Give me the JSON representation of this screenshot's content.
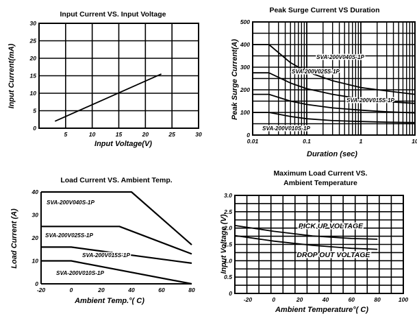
{
  "chart_data": [
    {
      "id": "c1",
      "type": "line",
      "title": "Input Current VS. Input Voltage",
      "xlabel": "Input  Voltage(V)",
      "ylabel": "Input Current(mA)",
      "xlim": [
        0,
        30
      ],
      "ylim": [
        0,
        30
      ],
      "x_ticks": [
        5,
        10,
        15,
        20,
        25,
        30
      ],
      "y_ticks": [
        0,
        5,
        10,
        15,
        20,
        25,
        30
      ],
      "grid": true,
      "series": [
        {
          "x": [
            3,
            23
          ],
          "y": [
            2,
            15.5
          ]
        }
      ]
    },
    {
      "id": "c2",
      "type": "line",
      "title": "Peak Surge Current VS Duration",
      "xlabel": "Duration (sec)",
      "ylabel": "Peak Surge Current(A)",
      "xscale": "log",
      "xlim": [
        0.01,
        10
      ],
      "ylim": [
        0,
        500
      ],
      "x_ticks": [
        0.01,
        0.1,
        1,
        10
      ],
      "x_tick_labels": [
        "0.01",
        "0.1",
        "1",
        "10"
      ],
      "y_ticks": [
        0,
        100,
        200,
        300,
        400,
        500
      ],
      "grid": true,
      "series": [
        {
          "name": "SVA-200V040S-1P",
          "x": [
            0.01,
            0.02,
            0.05,
            0.1,
            0.3,
            1,
            3,
            10
          ],
          "y": [
            400,
            400,
            320,
            280,
            240,
            210,
            195,
            180
          ]
        },
        {
          "name": "SVA-200V025S-1P",
          "x": [
            0.01,
            0.02,
            0.05,
            0.1,
            0.3,
            1,
            3,
            10
          ],
          "y": [
            275,
            275,
            230,
            205,
            180,
            160,
            148,
            140
          ]
        },
        {
          "name": "SVA-200V015S-1P",
          "x": [
            0.01,
            0.02,
            0.05,
            0.1,
            0.3,
            1,
            3,
            10
          ],
          "y": [
            180,
            180,
            150,
            135,
            120,
            110,
            103,
            98
          ]
        },
        {
          "name": "SVA-200V010S-1P",
          "x": [
            0.01,
            0.02,
            0.05,
            0.1,
            0.3,
            1,
            3,
            10
          ],
          "y": [
            100,
            100,
            82,
            72,
            64,
            60,
            57,
            55
          ]
        }
      ]
    },
    {
      "id": "c3",
      "type": "line",
      "title": "Load Current VS.  Ambient Temp.",
      "xlabel": "Ambient Temp.°( C)",
      "ylabel": "Load Current (A)",
      "xlim": [
        -20,
        80
      ],
      "ylim": [
        0,
        40
      ],
      "x_ticks": [
        -20,
        0,
        20,
        40,
        60,
        80
      ],
      "y_ticks": [
        0,
        10,
        20,
        30,
        40
      ],
      "grid": false,
      "series": [
        {
          "name": "SVA-200V040S-1P",
          "x": [
            -20,
            40,
            80
          ],
          "y": [
            40,
            40,
            17
          ]
        },
        {
          "name": "SVA-200V025S-1P",
          "x": [
            -20,
            32,
            80
          ],
          "y": [
            25,
            25,
            13
          ]
        },
        {
          "name": "SVA-200V015S-1P",
          "x": [
            -20,
            0,
            80
          ],
          "y": [
            16,
            16,
            9
          ]
        },
        {
          "name": "SVA-200V010S-1P",
          "x": [
            -20,
            0,
            80
          ],
          "y": [
            10,
            10,
            0
          ]
        }
      ]
    },
    {
      "id": "c4",
      "type": "line",
      "title": "Maximum Load Current VS.\nAmbient  Temperature",
      "xlabel": "Ambient Temperature°( C)",
      "ylabel": "Input Voltage (V)",
      "xlim": [
        -30,
        100
      ],
      "ylim": [
        0,
        3.0
      ],
      "x_ticks": [
        -20,
        0,
        20,
        40,
        60,
        80,
        100
      ],
      "y_ticks": [
        0,
        0.5,
        1.0,
        1.5,
        2.0,
        2.5,
        3.0
      ],
      "y_tick_labels": [
        "0",
        "0.5",
        "1.0",
        "1.5",
        "2.0",
        "2.5",
        "3.0"
      ],
      "grid": true,
      "series": [
        {
          "name": "PICK UP VOLTAGE",
          "x": [
            -30,
            0,
            30,
            60,
            80
          ],
          "y": [
            2.08,
            1.9,
            1.76,
            1.68,
            1.66
          ]
        },
        {
          "name": "DROP OUT VOLTAGE",
          "x": [
            -30,
            0,
            30,
            60,
            80
          ],
          "y": [
            1.77,
            1.6,
            1.47,
            1.38,
            1.35
          ]
        }
      ]
    }
  ]
}
